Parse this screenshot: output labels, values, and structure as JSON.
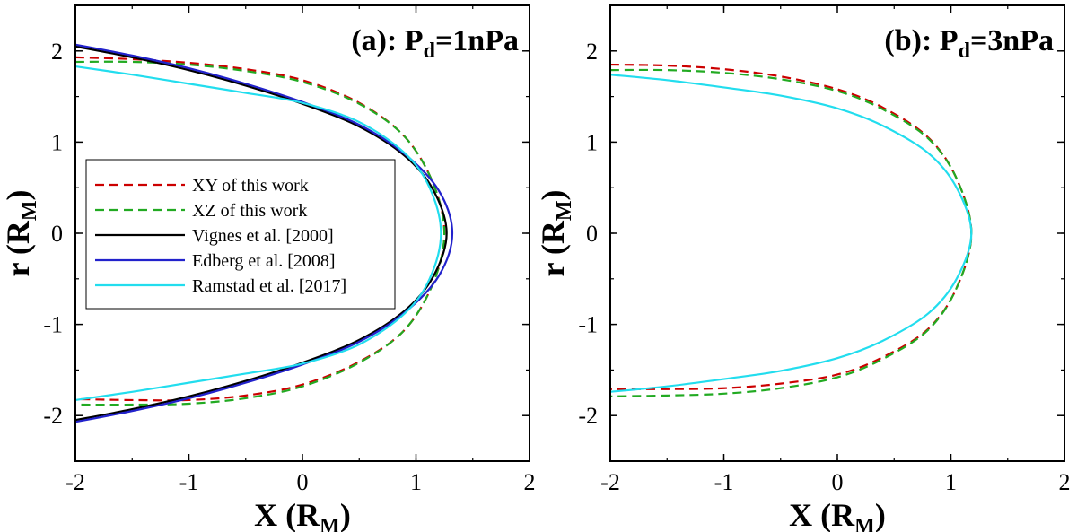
{
  "chart_data": [
    {
      "type": "line",
      "title_main": "(a): P",
      "title_sub": "d",
      "title_tail": "=1nPa",
      "xlabel_main": "X (R",
      "xlabel_sub": "M",
      "xlabel_tail": ")",
      "ylabel_main": "r (R",
      "ylabel_sub": "M",
      "ylabel_tail": ")",
      "xlim": [
        -2,
        2
      ],
      "ylim": [
        -2.5,
        2.5
      ],
      "xticks": [
        -2,
        -1,
        0,
        1,
        2
      ],
      "yticks": [
        -2,
        -1,
        0,
        1,
        2
      ],
      "legend_position": "left-center",
      "series": [
        {
          "name": "XY of this work",
          "color": "#cc0000",
          "dash": "dashed",
          "x": [
            -2.0,
            -1.5,
            -1.0,
            -0.5,
            0.0,
            0.5,
            0.9,
            1.15,
            1.25,
            1.15,
            0.9,
            0.5,
            0.0,
            -0.5,
            -1.0,
            -1.5,
            -2.0
          ],
          "y": [
            1.93,
            1.91,
            1.87,
            1.8,
            1.68,
            1.43,
            1.06,
            0.55,
            0.0,
            -0.55,
            -1.06,
            -1.41,
            -1.66,
            -1.78,
            -1.83,
            -1.83,
            -1.82
          ]
        },
        {
          "name": "XZ of this work",
          "color": "#22aa22",
          "dash": "dashed",
          "x": [
            -2.0,
            -1.5,
            -1.0,
            -0.5,
            0.0,
            0.5,
            0.9,
            1.15,
            1.25,
            1.15,
            0.9,
            0.5,
            0.0,
            -0.5,
            -1.0,
            -1.5,
            -2.0
          ],
          "y": [
            1.88,
            1.88,
            1.85,
            1.78,
            1.66,
            1.42,
            1.06,
            0.55,
            0.0,
            -0.55,
            -1.06,
            -1.42,
            -1.68,
            -1.81,
            -1.87,
            -1.88,
            -1.88
          ]
        },
        {
          "name": "Vignes et al. [2000]",
          "color": "#000000",
          "dash": "solid",
          "x": [
            -2.0,
            -1.5,
            -1.0,
            -0.5,
            0.0,
            0.5,
            0.9,
            1.15,
            1.27,
            1.15,
            0.9,
            0.5,
            0.0,
            -0.5,
            -1.0,
            -1.5,
            -2.0
          ],
          "y": [
            2.05,
            1.93,
            1.79,
            1.62,
            1.42,
            1.17,
            0.85,
            0.48,
            0.0,
            -0.48,
            -0.85,
            -1.17,
            -1.42,
            -1.62,
            -1.79,
            -1.93,
            -2.05
          ]
        },
        {
          "name": "Edberg et al. [2008]",
          "color": "#2222cc",
          "dash": "solid",
          "x": [
            -2.0,
            -1.5,
            -1.0,
            -0.5,
            0.0,
            0.5,
            0.9,
            1.2,
            1.32,
            1.2,
            0.9,
            0.5,
            0.0,
            -0.5,
            -1.0,
            -1.5,
            -2.0
          ],
          "y": [
            2.07,
            1.95,
            1.81,
            1.64,
            1.44,
            1.19,
            0.87,
            0.47,
            0.0,
            -0.47,
            -0.87,
            -1.19,
            -1.44,
            -1.64,
            -1.81,
            -1.95,
            -2.07
          ]
        },
        {
          "name": "Ramstad et al. [2017]",
          "color": "#22ddee",
          "dash": "solid",
          "x": [
            -2.0,
            -1.5,
            -1.0,
            -0.5,
            0.0,
            0.5,
            0.9,
            1.12,
            1.22,
            1.12,
            0.9,
            0.5,
            0.0,
            -0.5,
            -1.0,
            -1.5,
            -2.0
          ],
          "y": [
            1.83,
            1.74,
            1.64,
            1.54,
            1.43,
            1.22,
            0.88,
            0.5,
            0.0,
            -0.5,
            -0.88,
            -1.22,
            -1.43,
            -1.54,
            -1.64,
            -1.74,
            -1.83
          ]
        }
      ]
    },
    {
      "type": "line",
      "title_main": "(b): P",
      "title_sub": "d",
      "title_tail": "=3nPa",
      "xlabel_main": "X (R",
      "xlabel_sub": "M",
      "xlabel_tail": ")",
      "ylabel_main": "r (R",
      "ylabel_sub": "M",
      "ylabel_tail": ")",
      "xlim": [
        -2,
        2
      ],
      "ylim": [
        -2.5,
        2.5
      ],
      "xticks": [
        -2,
        -1,
        0,
        1,
        2
      ],
      "yticks": [
        -2,
        -1,
        0,
        1,
        2
      ],
      "series": [
        {
          "name": "XY of this work",
          "color": "#cc0000",
          "dash": "dashed",
          "x": [
            -2.0,
            -1.5,
            -1.0,
            -0.5,
            0.0,
            0.4,
            0.8,
            1.05,
            1.18,
            1.05,
            0.8,
            0.4,
            0.0,
            -0.5,
            -1.0,
            -1.5,
            -2.0
          ],
          "y": [
            1.85,
            1.84,
            1.8,
            1.72,
            1.58,
            1.38,
            1.05,
            0.6,
            0.0,
            -0.6,
            -1.05,
            -1.36,
            -1.55,
            -1.65,
            -1.7,
            -1.71,
            -1.71
          ]
        },
        {
          "name": "XZ of this work",
          "color": "#22aa22",
          "dash": "dashed",
          "x": [
            -2.0,
            -1.5,
            -1.0,
            -0.5,
            0.0,
            0.4,
            0.8,
            1.05,
            1.18,
            1.05,
            0.8,
            0.4,
            0.0,
            -0.5,
            -1.0,
            -1.5,
            -2.0
          ],
          "y": [
            1.79,
            1.79,
            1.76,
            1.69,
            1.56,
            1.36,
            1.04,
            0.6,
            0.0,
            -0.6,
            -1.06,
            -1.38,
            -1.58,
            -1.7,
            -1.76,
            -1.78,
            -1.79
          ]
        },
        {
          "name": "Ramstad et al. [2017]",
          "color": "#22ddee",
          "dash": "solid",
          "x": [
            -2.0,
            -1.5,
            -1.0,
            -0.5,
            0.0,
            0.4,
            0.8,
            1.05,
            1.18,
            1.05,
            0.8,
            0.4,
            0.0,
            -0.5,
            -1.0,
            -1.5,
            -2.0
          ],
          "y": [
            1.74,
            1.68,
            1.6,
            1.51,
            1.37,
            1.18,
            0.88,
            0.5,
            0.0,
            -0.5,
            -0.88,
            -1.18,
            -1.37,
            -1.51,
            -1.6,
            -1.68,
            -1.74
          ]
        }
      ]
    }
  ]
}
